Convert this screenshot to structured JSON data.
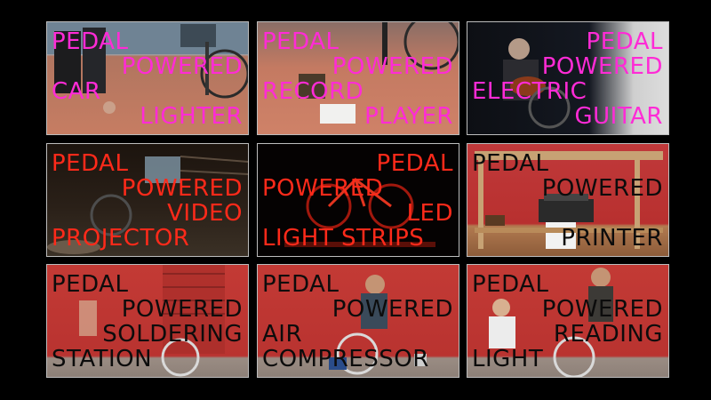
{
  "tiles": [
    {
      "lines": [
        "PEDAL",
        "POWERED",
        "CAR",
        "LIGHTER"
      ],
      "color": "#ff2bd6"
    },
    {
      "lines": [
        "PEDAL",
        "POWERED",
        "RECORD",
        "PLAYER"
      ],
      "color": "#ff2bd6"
    },
    {
      "lines": [
        "PEDAL",
        "POWERED",
        "ELECTRIC",
        "GUITAR"
      ],
      "color": "#ff2bd6"
    },
    {
      "lines": [
        "PEDAL",
        "POWERED",
        "VIDEO",
        "PROJECTOR"
      ],
      "color": "#ff2a1a"
    },
    {
      "lines": [
        "PEDAL",
        "POWERED",
        "LED",
        "LIGHT STRIPS"
      ],
      "color": "#ff2a1a"
    },
    {
      "lines": [
        "PEDAL",
        "POWERED",
        "PRINTER"
      ],
      "color": "#0c0c0c"
    },
    {
      "lines": [
        "PEDAL",
        "POWERED",
        "SOLDERING",
        "STATION"
      ],
      "color": "#0c0c0c"
    },
    {
      "lines": [
        "PEDAL",
        "POWERED",
        "AIR",
        "COMPRESSOR"
      ],
      "color": "#0c0c0c"
    },
    {
      "lines": [
        "PEDAL",
        "POWERED",
        "READING",
        "LIGHT"
      ],
      "color": "#0c0c0c"
    }
  ]
}
